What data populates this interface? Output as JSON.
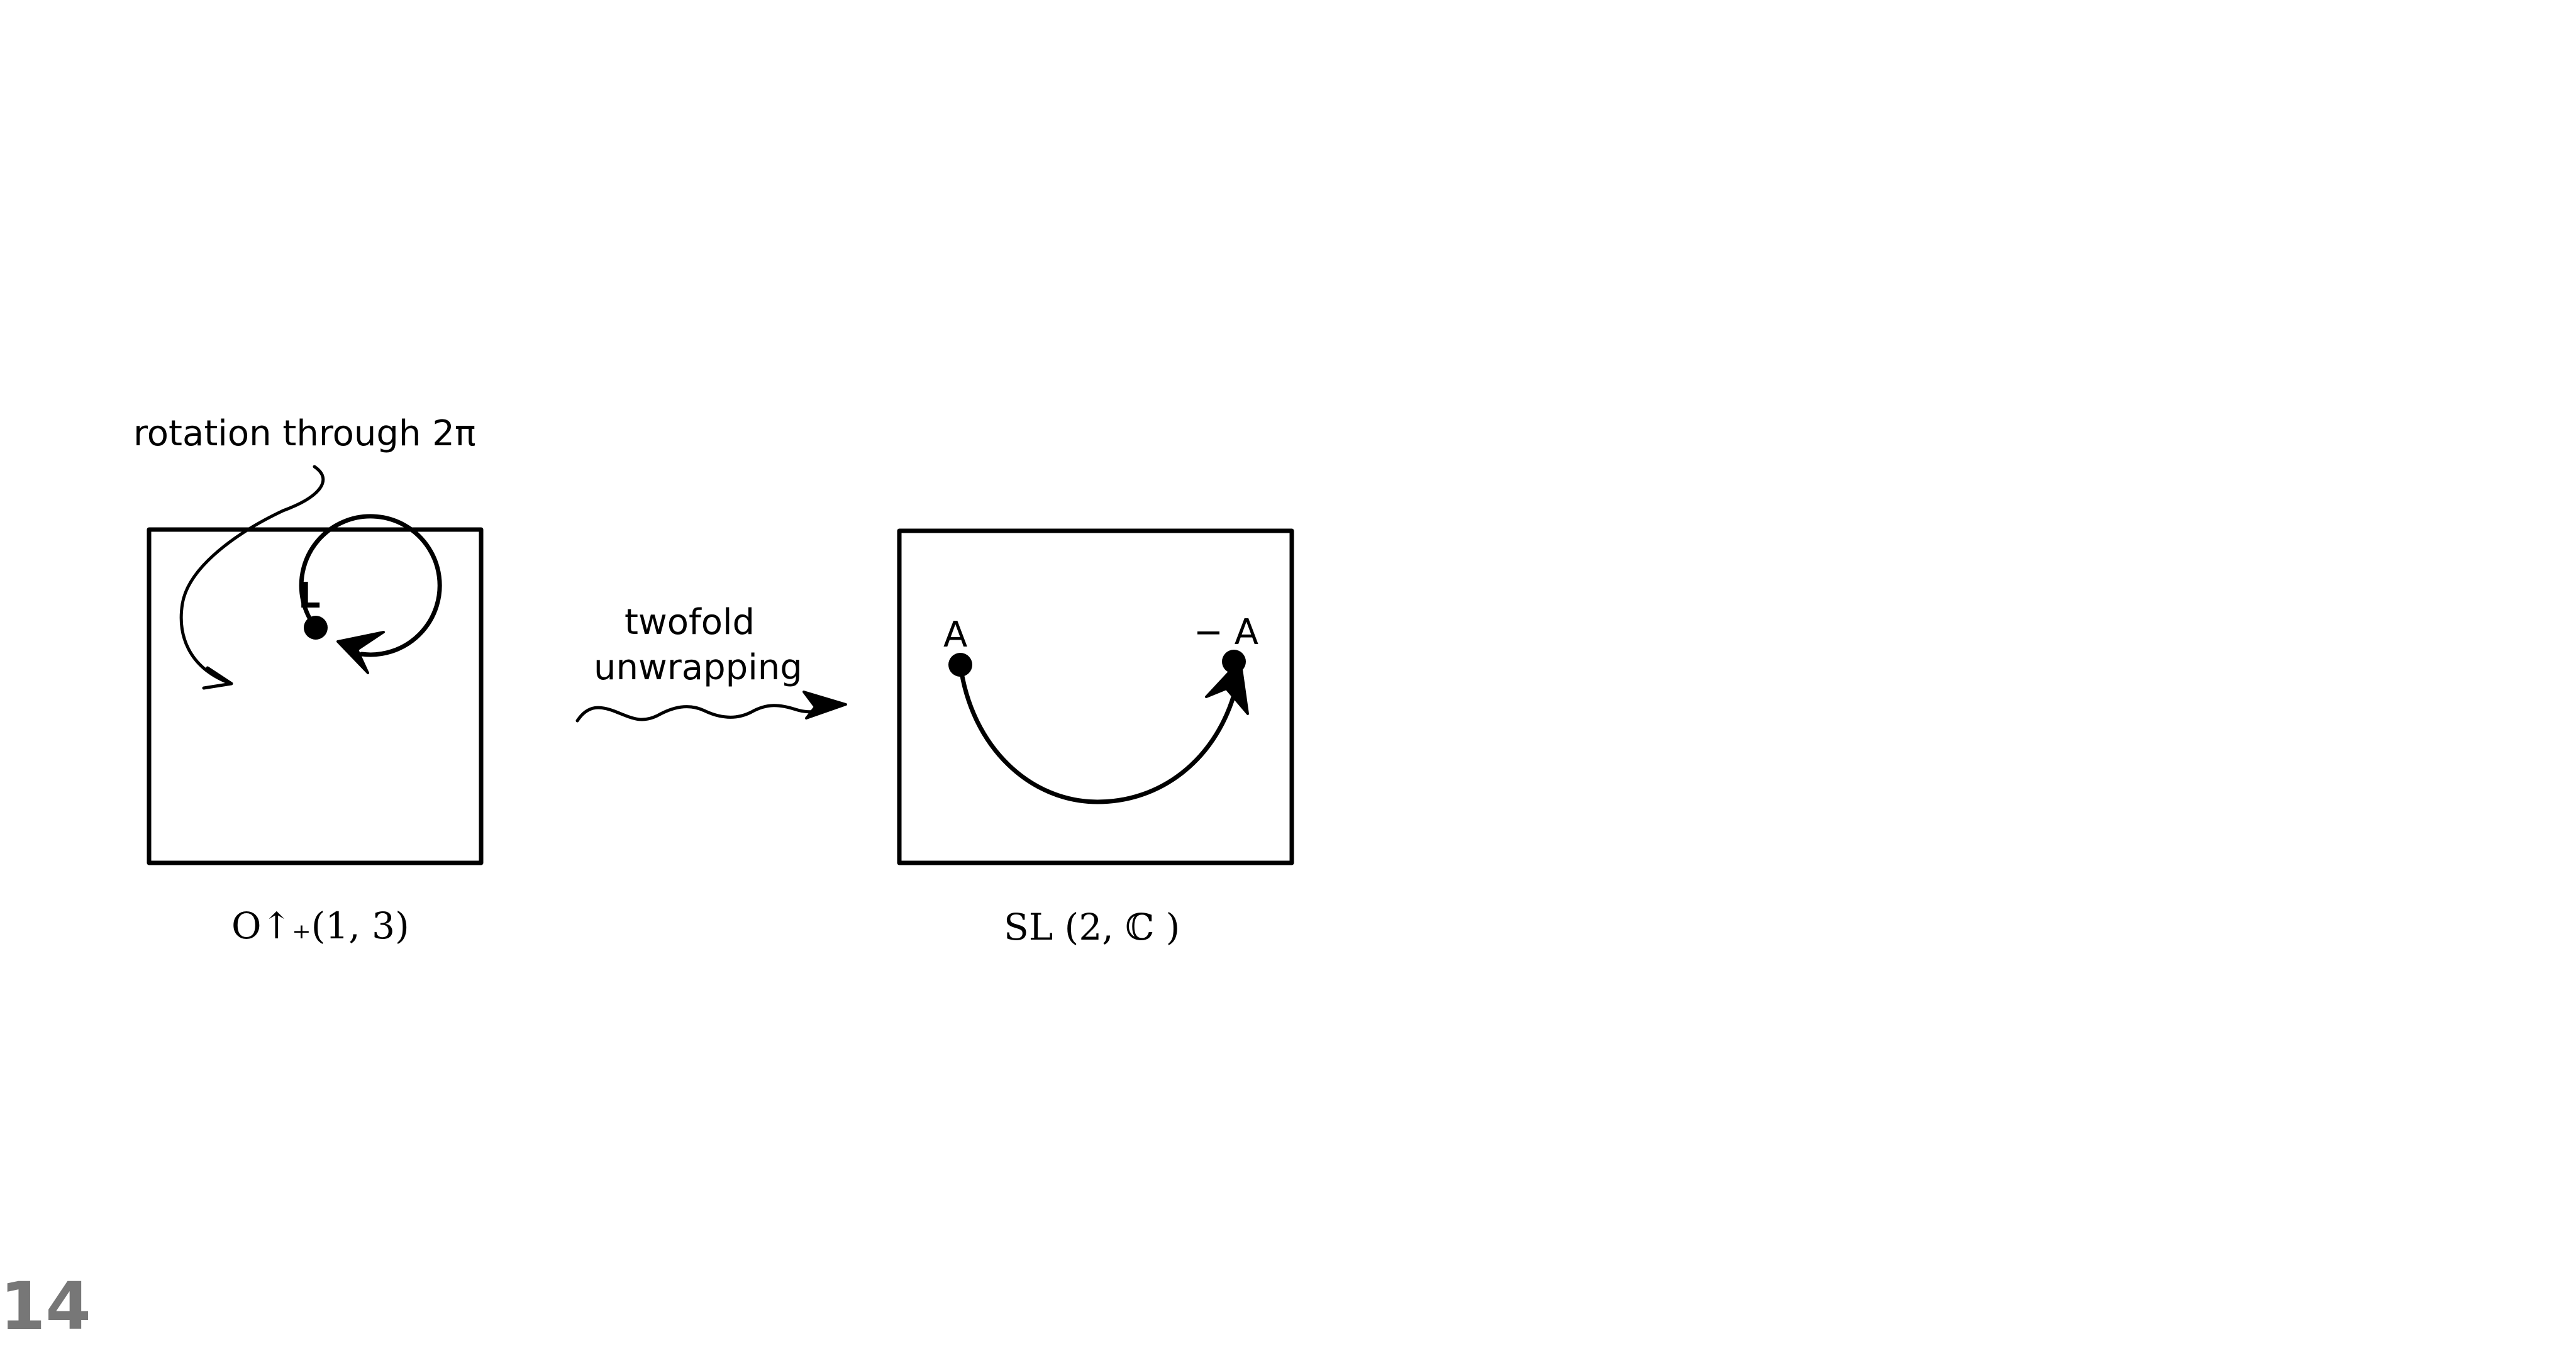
{
  "annotation": {
    "rotation_label": "rotation through 2π"
  },
  "left_panel": {
    "point_label": "L",
    "group_label": "O↑₊(1, 3)"
  },
  "transition": {
    "line1": "twofold",
    "line2": "unwrapping"
  },
  "right_panel": {
    "start_label": "A",
    "end_label": "− A",
    "group_label": "SL (2, ℂ )"
  },
  "page": {
    "number": "14"
  }
}
